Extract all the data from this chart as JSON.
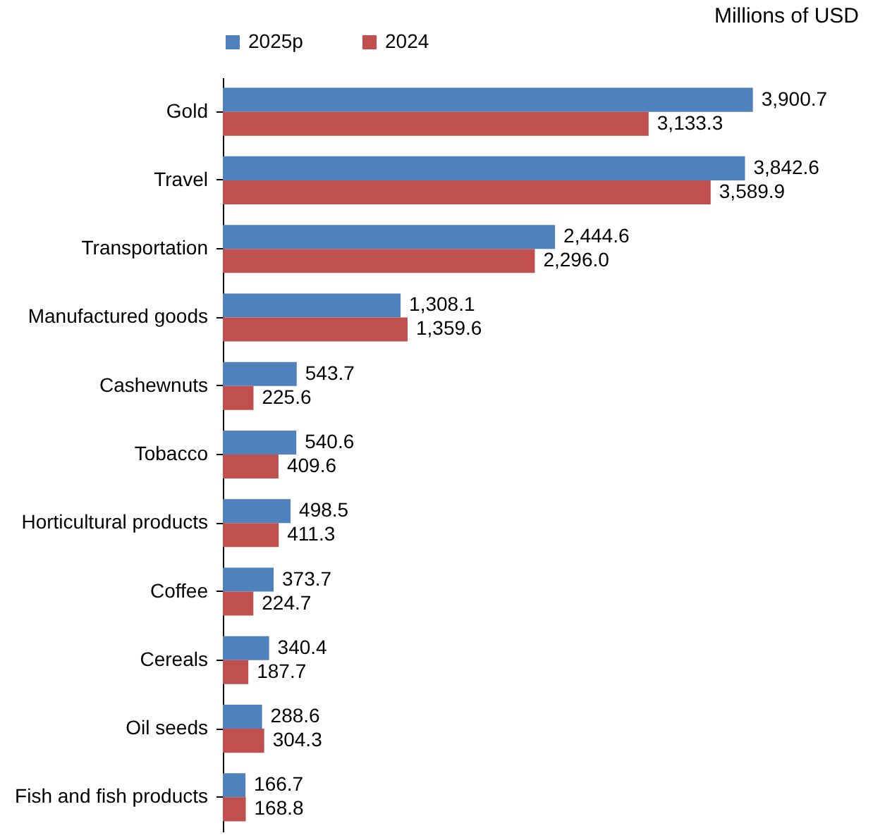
{
  "chart_data": {
    "type": "bar",
    "orientation": "horizontal",
    "annotations": [
      "Millions of USD"
    ],
    "categories": [
      "Gold",
      "Travel",
      "Transportation",
      "Manufactured goods",
      "Cashewnuts",
      "Tobacco",
      "Horticultural products",
      "Coffee",
      "Cereals",
      "Oil seeds",
      "Fish and fish products"
    ],
    "series": [
      {
        "name": "2025p",
        "color": "#4f81bd",
        "values": [
          3900.7,
          3842.6,
          2444.6,
          1308.1,
          543.7,
          540.6,
          498.5,
          373.7,
          340.4,
          288.6,
          166.7
        ],
        "value_labels": [
          "3,900.7",
          "3,842.6",
          "2,444.6",
          "1,308.1",
          "543.7",
          "540.6",
          "498.5",
          "373.7",
          "340.4",
          "288.6",
          "166.7"
        ]
      },
      {
        "name": "2024",
        "color": "#c0504d",
        "values": [
          3133.3,
          3589.9,
          2296.0,
          1359.6,
          225.6,
          409.6,
          411.3,
          224.7,
          187.7,
          304.3,
          168.8
        ],
        "value_labels": [
          "3,133.3",
          "3,589.9",
          "2,296.0",
          "1,359.6",
          "225.6",
          "409.6",
          "411.3",
          "224.7",
          "187.7",
          "304.3",
          "168.8"
        ]
      }
    ],
    "legend": "top"
  }
}
